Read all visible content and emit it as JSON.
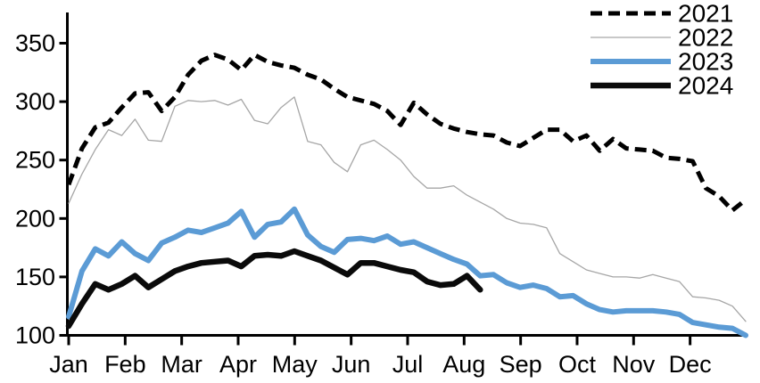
{
  "chart_data": {
    "type": "line",
    "title": "",
    "xlabel": "",
    "ylabel": "",
    "x_unit": "weeks (52 per year, Jan-Dec)",
    "x_tick_labels": [
      "Jan",
      "Feb",
      "Mar",
      "Apr",
      "May",
      "Jun",
      "Jul",
      "Aug",
      "Sep",
      "Oct",
      "Nov",
      "Dec"
    ],
    "y_ticks": [
      100,
      150,
      200,
      250,
      300,
      350
    ],
    "ylim": [
      100,
      376
    ],
    "grid": false,
    "legend_position": "top-right",
    "axis_color": "#000000",
    "series": [
      {
        "name": "2021",
        "color": "#000000",
        "style": "dashed",
        "width": 5,
        "values": [
          229,
          260,
          278,
          282,
          295,
          307,
          308,
          292,
          304,
          323,
          335,
          340,
          336,
          327,
          340,
          334,
          331,
          329,
          323,
          319,
          311,
          304,
          301,
          298,
          292,
          280,
          299,
          289,
          281,
          277,
          274,
          272,
          271,
          265,
          262,
          269,
          276,
          276,
          266,
          271,
          258,
          268,
          260,
          259,
          258,
          252,
          251,
          249,
          226,
          219,
          207,
          216
        ]
      },
      {
        "name": "2022",
        "color": "#a6a6a6",
        "style": "solid",
        "width": 1.3,
        "values": [
          213,
          238,
          259,
          276,
          271,
          285,
          267,
          266,
          296,
          301,
          300,
          301,
          297,
          302,
          284,
          281,
          295,
          304,
          266,
          263,
          248,
          240,
          263,
          267,
          259,
          250,
          236,
          226,
          226,
          228,
          220,
          214,
          208,
          200,
          196,
          195,
          192,
          170,
          163,
          156,
          153,
          150,
          150,
          149,
          152,
          149,
          146,
          133,
          132,
          130,
          125,
          112
        ]
      },
      {
        "name": "2023",
        "color": "#5b9bd5",
        "style": "solid",
        "width": 6,
        "values": [
          116,
          155,
          174,
          168,
          180,
          170,
          164,
          179,
          184,
          190,
          188,
          192,
          196,
          206,
          184,
          195,
          197,
          208,
          186,
          176,
          171,
          182,
          183,
          181,
          185,
          178,
          180,
          175,
          170,
          165,
          161,
          151,
          152,
          145,
          141,
          143,
          140,
          133,
          134,
          127,
          122,
          120,
          121,
          121,
          121,
          120,
          118,
          111,
          109,
          107,
          106,
          100
        ]
      },
      {
        "name": "2024",
        "color": "#0a0a0a",
        "style": "solid",
        "width": 6.5,
        "values": [
          108,
          127,
          144,
          139,
          144,
          151,
          141,
          148,
          155,
          159,
          162,
          163,
          164,
          159,
          168,
          169,
          168,
          172,
          168,
          164,
          158,
          152,
          162,
          162,
          159,
          156,
          154,
          146,
          143,
          144,
          151,
          139
        ]
      }
    ]
  }
}
